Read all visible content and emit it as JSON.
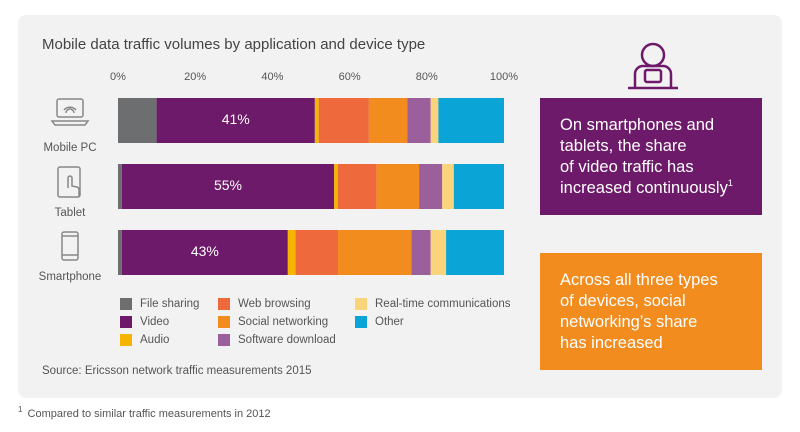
{
  "chart_data": {
    "type": "stacked-bar-horizontal",
    "title": "Mobile data traffic volumes by application and device type",
    "categories": [
      "Mobile PC",
      "Tablet",
      "Smartphone"
    ],
    "xlim": [
      0,
      100
    ],
    "xticks": [
      {
        "value": 0,
        "label": "0%"
      },
      {
        "value": 20,
        "label": "20%"
      },
      {
        "value": 40,
        "label": "40%"
      },
      {
        "value": 60,
        "label": "60%"
      },
      {
        "value": 80,
        "label": "80%"
      },
      {
        "value": 100,
        "label": "100%"
      }
    ],
    "grid": false,
    "series": [
      {
        "name": "File sharing",
        "color": "#6d6e70",
        "values": [
          10,
          1,
          1
        ]
      },
      {
        "name": "Video",
        "color": "#6e1a6a",
        "values": [
          41,
          55,
          43
        ],
        "value_labels": [
          "41%",
          "55%",
          "43%"
        ]
      },
      {
        "name": "Audio",
        "color": "#f5b400",
        "values": [
          1,
          1,
          2
        ]
      },
      {
        "name": "Web browsing",
        "color": "#ee6a3c",
        "values": [
          13,
          10,
          11
        ]
      },
      {
        "name": "Social networking",
        "color": "#f28c1e",
        "values": [
          10,
          11,
          19
        ]
      },
      {
        "name": "Software download",
        "color": "#9b5f9b",
        "values": [
          6,
          6,
          5
        ]
      },
      {
        "name": "Real-time communications",
        "color": "#fad47a",
        "values": [
          2,
          3,
          4
        ]
      },
      {
        "name": "Other",
        "color": "#0aa5d6",
        "values": [
          17,
          13,
          15
        ]
      }
    ],
    "source": "Source: Ericsson network traffic measurements 2015",
    "callouts": [
      {
        "color": "#6e1a6a",
        "lines": [
          "On smartphones and",
          "tablets, the share",
          "of video traffic has",
          "increased continuously"
        ],
        "sup": "1"
      },
      {
        "color": "#f28c1e",
        "lines": [
          "Across all three types",
          "of devices, social",
          "networking’s share",
          "has increased"
        ]
      }
    ],
    "footnote": {
      "marker": "1",
      "text": "Compared to similar traffic measurements in 2012"
    }
  }
}
